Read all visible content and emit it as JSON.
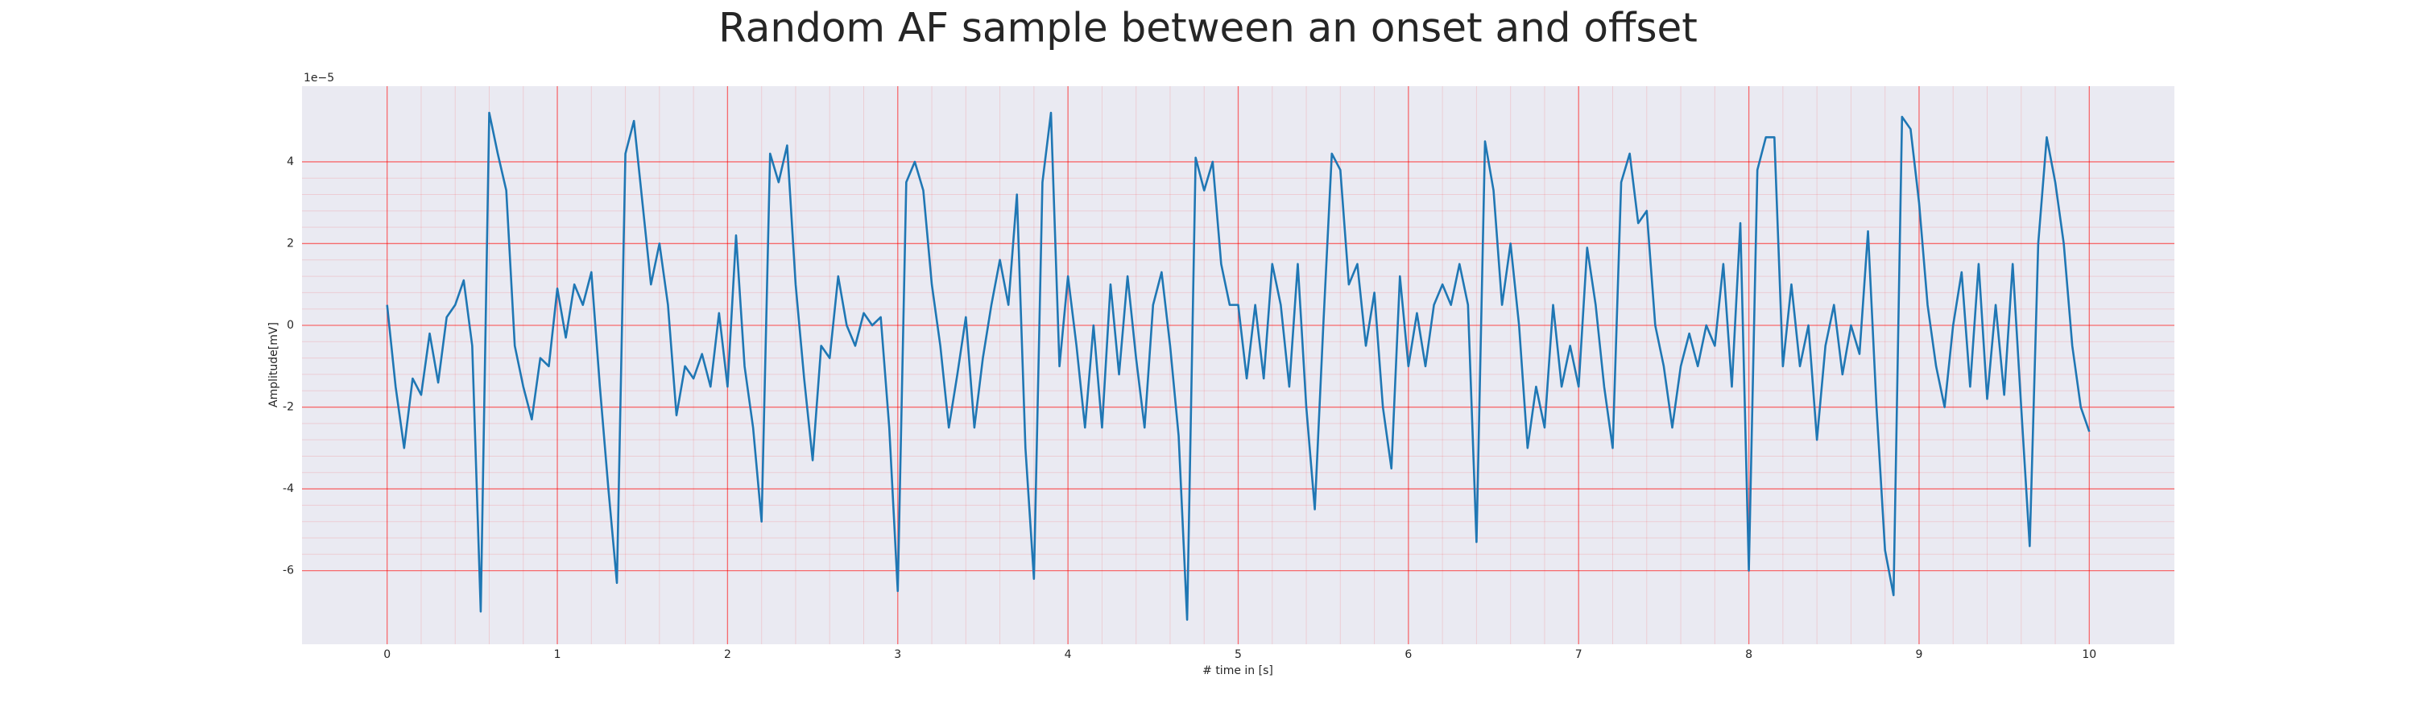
{
  "chart_data": {
    "type": "line",
    "title": "Random AF sample between an onset and offset",
    "xlabel": "# time in [s]",
    "ylabel": "Amplitude[mV]",
    "y_offset_text": "1e−5",
    "color": "#1f77b4",
    "grid": true,
    "grid_color": "#ff0000",
    "x": [
      0,
      0.05,
      0.1,
      0.15,
      0.2,
      0.25,
      0.3,
      0.35,
      0.4,
      0.45,
      0.5,
      0.55,
      0.6,
      0.65,
      0.7,
      0.75,
      0.8,
      0.85,
      0.9,
      0.95,
      1,
      1.05,
      1.1,
      1.15,
      1.2,
      1.25,
      1.3,
      1.35,
      1.4,
      1.45,
      1.5,
      1.55,
      1.6,
      1.65,
      1.7,
      1.75,
      1.8,
      1.85,
      1.9,
      1.95,
      2,
      2.05,
      2.1,
      2.15,
      2.2,
      2.25,
      2.3,
      2.35,
      2.4,
      2.45,
      2.5,
      2.55,
      2.6,
      2.65,
      2.7,
      2.75,
      2.8,
      2.85,
      2.9,
      2.95,
      3,
      3.05,
      3.1,
      3.15,
      3.2,
      3.25,
      3.3,
      3.35,
      3.4,
      3.45,
      3.5,
      3.55,
      3.6,
      3.65,
      3.7,
      3.75,
      3.8,
      3.85,
      3.9,
      3.95,
      4,
      4.05,
      4.1,
      4.15,
      4.2,
      4.25,
      4.3,
      4.35,
      4.4,
      4.45,
      4.5,
      4.55,
      4.6,
      4.65,
      4.7,
      4.75,
      4.8,
      4.85,
      4.9,
      4.95,
      5,
      5.05,
      5.1,
      5.15,
      5.2,
      5.25,
      5.3,
      5.35,
      5.4,
      5.45,
      5.5,
      5.55,
      5.6,
      5.65,
      5.7,
      5.75,
      5.8,
      5.85,
      5.9,
      5.95,
      6,
      6.05,
      6.1,
      6.15,
      6.2,
      6.25,
      6.3,
      6.35,
      6.4,
      6.45,
      6.5,
      6.55,
      6.6,
      6.65,
      6.7,
      6.75,
      6.8,
      6.85,
      6.9,
      6.95,
      7,
      7.05,
      7.1,
      7.15,
      7.2,
      7.25,
      7.3,
      7.35,
      7.4,
      7.45,
      7.5,
      7.55,
      7.6,
      7.65,
      7.7,
      7.75,
      7.8,
      7.85,
      7.9,
      7.95,
      8,
      8.05,
      8.1,
      8.15,
      8.2,
      8.25,
      8.3,
      8.35,
      8.4,
      8.45,
      8.5,
      8.55,
      8.6,
      8.65,
      8.7,
      8.75,
      8.8,
      8.85,
      8.9,
      8.95,
      9,
      9.05,
      9.1,
      9.15,
      9.2,
      9.25,
      9.3,
      9.35,
      9.4,
      9.45,
      9.5,
      9.55,
      9.6,
      9.65,
      9.7,
      9.75,
      9.8,
      9.85,
      9.9,
      9.95,
      10
    ],
    "values": [
      0.5,
      -1.5,
      -3.0,
      -1.3,
      -1.7,
      -0.2,
      -1.4,
      0.2,
      0.5,
      1.1,
      -0.5,
      -7.0,
      5.2,
      4.2,
      3.3,
      -0.5,
      -1.5,
      -2.3,
      -0.8,
      -1.0,
      0.9,
      -0.3,
      1.0,
      0.5,
      1.3,
      -1.5,
      -4.0,
      -6.3,
      4.2,
      5.0,
      3.0,
      1.0,
      2.0,
      0.5,
      -2.2,
      -1.0,
      -1.3,
      -0.7,
      -1.5,
      0.3,
      -1.5,
      2.2,
      -1.0,
      -2.5,
      -4.8,
      4.2,
      3.5,
      4.4,
      1.0,
      -1.3,
      -3.3,
      -0.5,
      -0.8,
      1.2,
      0.0,
      -0.5,
      0.3,
      0.0,
      0.2,
      -2.5,
      -6.5,
      3.5,
      4.0,
      3.3,
      1.0,
      -0.5,
      -2.5,
      -1.2,
      0.2,
      -2.5,
      -0.8,
      0.5,
      1.6,
      0.5,
      3.2,
      -3.0,
      -6.2,
      3.5,
      5.2,
      -1.0,
      1.2,
      -0.5,
      -2.5,
      0.0,
      -2.5,
      1.0,
      -1.2,
      1.2,
      -0.8,
      -2.5,
      0.5,
      1.3,
      -0.5,
      -2.7,
      -7.2,
      4.1,
      3.3,
      4.0,
      1.5,
      0.5,
      0.5,
      -1.3,
      0.5,
      -1.3,
      1.5,
      0.5,
      -1.5,
      1.5,
      -2.0,
      -4.5,
      0.0,
      4.2,
      3.8,
      1.0,
      1.5,
      -0.5,
      0.8,
      -2.0,
      -3.5,
      1.2,
      -1.0,
      0.3,
      -1.0,
      0.5,
      1.0,
      0.5,
      1.5,
      0.5,
      -5.3,
      4.5,
      3.3,
      0.5,
      2.0,
      0.0,
      -3.0,
      -1.5,
      -2.5,
      0.5,
      -1.5,
      -0.5,
      -1.5,
      1.9,
      0.5,
      -1.5,
      -3.0,
      3.5,
      4.2,
      2.5,
      2.8,
      0.0,
      -1.0,
      -2.5,
      -1.0,
      -0.2,
      -1.0,
      0.0,
      -0.5,
      1.5,
      -1.5,
      2.5,
      -6.0,
      3.8,
      4.6,
      4.6,
      -1.0,
      1.0,
      -1.0,
      0.0,
      -2.8,
      -0.5,
      0.5,
      -1.2,
      0.0,
      -0.7,
      2.3,
      -2.0,
      -5.5,
      -6.6,
      5.1,
      4.8,
      3.0,
      0.5,
      -1.0,
      -2.0,
      0.0,
      1.3,
      -1.5,
      1.5,
      -1.8,
      0.5,
      -1.7,
      1.5,
      -2.0,
      -5.4,
      2.0,
      4.6,
      3.5,
      2.0,
      -0.5,
      -2.0,
      -2.6
    ],
    "xlim": [
      -0.5,
      10.5
    ],
    "ylim": [
      -7.8,
      5.85
    ],
    "xticks": [
      0,
      1,
      2,
      3,
      4,
      5,
      6,
      7,
      8,
      9,
      10
    ],
    "yticks": [
      -6,
      -4,
      -2,
      0,
      2,
      4
    ]
  }
}
